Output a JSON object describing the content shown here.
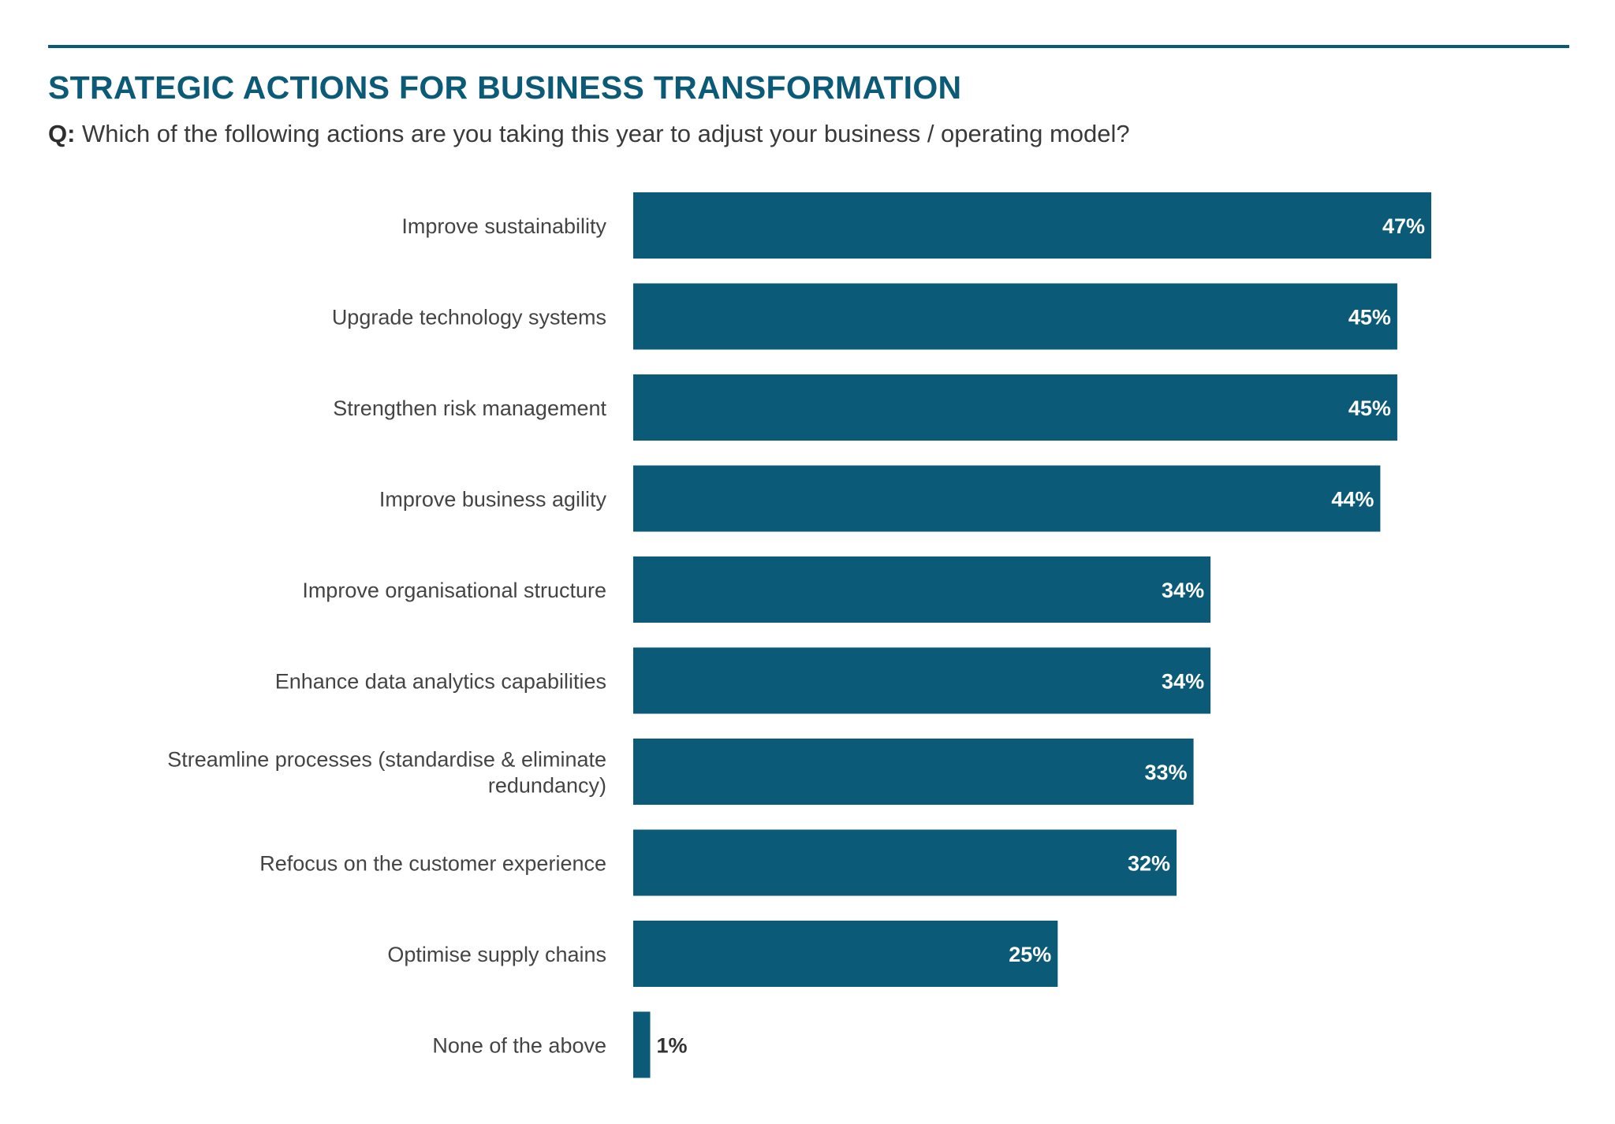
{
  "header": {
    "title": "STRATEGIC ACTIONS FOR BUSINESS TRANSFORMATION",
    "question_prefix": "Q:",
    "question_text": " Which of the following actions are you taking this year to adjust your business / operating model?"
  },
  "colors": {
    "bar": "#0a5a78",
    "title": "#0a5a78",
    "rule": "#0a5a78",
    "label_text": "#444444"
  },
  "chart_data": {
    "type": "bar",
    "orientation": "horizontal",
    "title": "STRATEGIC ACTIONS FOR BUSINESS TRANSFORMATION",
    "subtitle": "Q: Which of the following actions are you taking this year to adjust your business / operating model?",
    "xlabel": "",
    "ylabel": "",
    "unit": "%",
    "grid": false,
    "legend": "none",
    "categories": [
      [
        "Improve sustainability"
      ],
      [
        "Upgrade technology systems"
      ],
      [
        "Strengthen risk management"
      ],
      [
        "Improve business agility"
      ],
      [
        "Improve organisational structure"
      ],
      [
        "Enhance data analytics capabilities"
      ],
      [
        "Streamline processes (standardise & eliminate",
        "redundancy)"
      ],
      [
        "Refocus on the customer experience"
      ],
      [
        "Optimise supply chains"
      ],
      [
        "None of the above"
      ]
    ],
    "values": [
      47,
      45,
      45,
      44,
      34,
      34,
      33,
      32,
      25,
      1
    ],
    "value_labels": [
      "47%",
      "45%",
      "45%",
      "44%",
      "34%",
      "34%",
      "33%",
      "32%",
      "25%",
      "1%"
    ],
    "xlim": [
      0,
      47
    ]
  }
}
